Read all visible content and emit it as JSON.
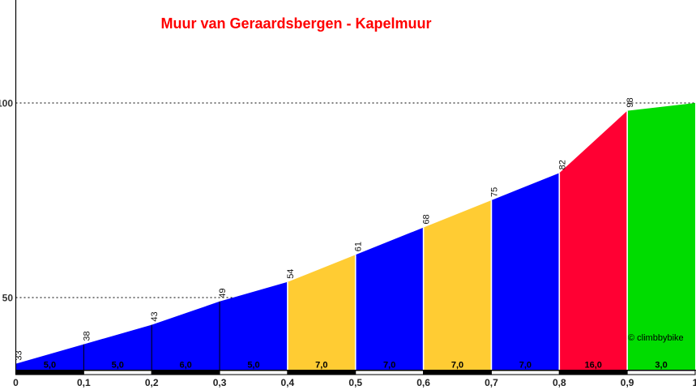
{
  "chart_data": {
    "type": "area",
    "title": "Muur van Geraardsbergen - Kapelmuur",
    "watermark": "© climbbybike",
    "xlabel": "",
    "ylabel": "",
    "xlim": [
      0,
      1
    ],
    "y_ticks": [
      {
        "value": 100,
        "label": "100"
      },
      {
        "value": 50,
        "label": "50"
      }
    ],
    "x_tick_labels": [
      "0",
      "0,1",
      "0,2",
      "0,3",
      "0,4",
      "0,5",
      "0,6",
      "0,7",
      "0,8",
      "0,9",
      "1"
    ],
    "boundaries_km": [
      0,
      0.1,
      0.2,
      0.3,
      0.4,
      0.5,
      0.6,
      0.7,
      0.8,
      0.9,
      1.0
    ],
    "elevations_m": [
      33,
      38,
      43,
      49,
      54,
      61,
      68,
      75,
      82,
      98,
      100
    ],
    "elevation_labels": [
      "33",
      "38",
      "43",
      "49",
      "54",
      "61",
      "68",
      "75",
      "82",
      "98"
    ],
    "segments": [
      {
        "gradient_label": "5,0",
        "color_key": "blue",
        "scale_bar": "black"
      },
      {
        "gradient_label": "5,0",
        "color_key": "blue",
        "scale_bar": "white"
      },
      {
        "gradient_label": "6,0",
        "color_key": "blue",
        "scale_bar": "black"
      },
      {
        "gradient_label": "5,0",
        "color_key": "blue",
        "scale_bar": "white"
      },
      {
        "gradient_label": "7,0",
        "color_key": "yellow",
        "scale_bar": "black"
      },
      {
        "gradient_label": "7,0",
        "color_key": "blue",
        "scale_bar": "white"
      },
      {
        "gradient_label": "7,0",
        "color_key": "yellow",
        "scale_bar": "black"
      },
      {
        "gradient_label": "7,0",
        "color_key": "blue",
        "scale_bar": "white"
      },
      {
        "gradient_label": "16,0",
        "color_key": "red",
        "scale_bar": "black"
      },
      {
        "gradient_label": "3,0",
        "color_key": "green",
        "scale_bar": "white"
      }
    ],
    "boundary_line_styles": [
      "black",
      "black",
      "black",
      "white",
      "white",
      "white",
      "white",
      "white",
      "white"
    ],
    "colors": {
      "blue": "#0000FF",
      "yellow": "#FFCC33",
      "red": "#FF0033",
      "green": "#00DC00",
      "title": "#FF0000",
      "axis": "#000000"
    }
  }
}
